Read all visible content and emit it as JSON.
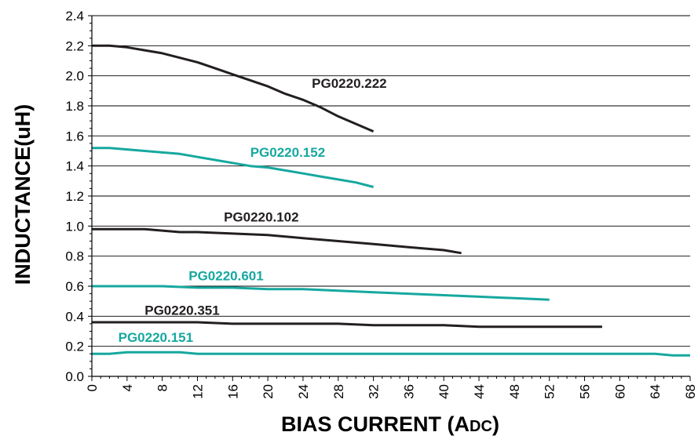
{
  "chart_data": {
    "type": "line",
    "title": "",
    "xlabel": {
      "main": "BIAS CURRENT (A",
      "sub": "DC",
      "close": ")"
    },
    "ylabel": "INDUCTANCE(uH)",
    "xlim": [
      0,
      68
    ],
    "ylim": [
      0.0,
      2.4
    ],
    "grid": "horizontal",
    "x_ticks": [
      "0",
      "4",
      "8",
      "12",
      "16",
      "20",
      "24",
      "28",
      "32",
      "36",
      "40",
      "44",
      "48",
      "52",
      "56",
      "60",
      "64",
      "68"
    ],
    "y_ticks": [
      "0.0",
      "0.2",
      "0.4",
      "0.6",
      "0.8",
      "1.0",
      "1.2",
      "1.4",
      "1.6",
      "1.8",
      "2.0",
      "2.2",
      "2.4"
    ],
    "colors": {
      "dark": "#231f20",
      "teal": "#16a89f"
    },
    "series": [
      {
        "name": "PG0220.222",
        "color": "#231f20",
        "x": [
          0,
          2,
          4,
          6,
          8,
          10,
          12,
          14,
          16,
          18,
          20,
          22,
          24,
          26,
          28,
          30,
          32
        ],
        "y": [
          2.2,
          2.2,
          2.19,
          2.17,
          2.15,
          2.12,
          2.09,
          2.05,
          2.01,
          1.97,
          1.93,
          1.88,
          1.84,
          1.79,
          1.73,
          1.68,
          1.63
        ]
      },
      {
        "name": "PG0220.152",
        "color": "#16a89f",
        "x": [
          0,
          2,
          4,
          6,
          8,
          10,
          12,
          14,
          16,
          18,
          20,
          22,
          24,
          26,
          28,
          30,
          32
        ],
        "y": [
          1.52,
          1.52,
          1.51,
          1.5,
          1.49,
          1.48,
          1.46,
          1.44,
          1.42,
          1.4,
          1.39,
          1.37,
          1.35,
          1.33,
          1.31,
          1.29,
          1.26
        ]
      },
      {
        "name": "PG0220.102",
        "color": "#231f20",
        "x": [
          0,
          4,
          6,
          8,
          10,
          12,
          16,
          20,
          24,
          26,
          28,
          30,
          32,
          34,
          36,
          38,
          40,
          42
        ],
        "y": [
          0.98,
          0.98,
          0.98,
          0.97,
          0.96,
          0.96,
          0.95,
          0.94,
          0.92,
          0.91,
          0.9,
          0.89,
          0.88,
          0.87,
          0.86,
          0.85,
          0.84,
          0.82
        ]
      },
      {
        "name": "PG0220.601",
        "color": "#16a89f",
        "x": [
          0,
          4,
          8,
          12,
          16,
          20,
          24,
          28,
          32,
          36,
          40,
          44,
          48,
          52
        ],
        "y": [
          0.6,
          0.6,
          0.6,
          0.59,
          0.59,
          0.58,
          0.58,
          0.57,
          0.56,
          0.55,
          0.54,
          0.53,
          0.52,
          0.51
        ]
      },
      {
        "name": "PG0220.351",
        "color": "#231f20",
        "x": [
          0,
          4,
          8,
          12,
          16,
          20,
          24,
          28,
          32,
          36,
          40,
          44,
          48,
          52,
          56,
          58
        ],
        "y": [
          0.36,
          0.36,
          0.36,
          0.36,
          0.35,
          0.35,
          0.35,
          0.35,
          0.34,
          0.34,
          0.34,
          0.33,
          0.33,
          0.33,
          0.33,
          0.33
        ]
      },
      {
        "name": "PG0220.151",
        "color": "#16a89f",
        "x": [
          0,
          2,
          4,
          8,
          10,
          12,
          20,
          30,
          40,
          50,
          60,
          64,
          66,
          68
        ],
        "y": [
          0.15,
          0.15,
          0.16,
          0.16,
          0.16,
          0.15,
          0.15,
          0.15,
          0.15,
          0.15,
          0.15,
          0.15,
          0.14,
          0.14
        ]
      }
    ],
    "annotations": [
      {
        "text": "PG0220.222",
        "series": 0,
        "x": 25,
        "y": 1.92
      },
      {
        "text": "PG0220.152",
        "series": 1,
        "x": 18,
        "y": 1.46
      },
      {
        "text": "PG0220.102",
        "series": 2,
        "x": 15,
        "y": 1.03
      },
      {
        "text": "PG0220.601",
        "series": 3,
        "x": 11,
        "y": 0.64
      },
      {
        "text": "PG0220.351",
        "series": 4,
        "x": 6,
        "y": 0.41
      },
      {
        "text": "PG0220.151",
        "series": 5,
        "x": 3,
        "y": 0.23
      }
    ]
  }
}
